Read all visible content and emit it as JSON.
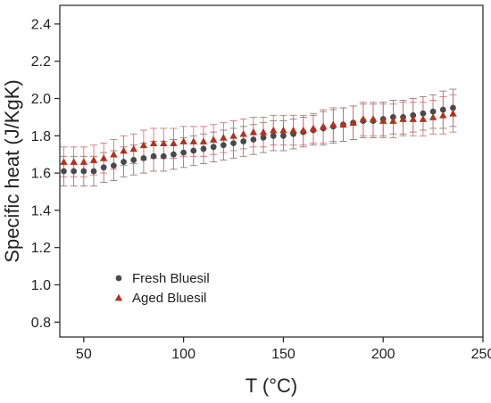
{
  "chart_data": {
    "type": "scatter",
    "title": "",
    "xlabel": "T (°C)",
    "ylabel": "Specific heat (J/KgK)",
    "xlim": [
      38,
      250
    ],
    "ylim": [
      0.72,
      2.5
    ],
    "xticks": [
      50,
      100,
      150,
      200,
      250
    ],
    "yticks": [
      0.8,
      1.0,
      1.2,
      1.4,
      1.6,
      1.8,
      2.0,
      2.2,
      2.4
    ],
    "tick_labels_x": [
      "50",
      "100",
      "150",
      "200",
      "250"
    ],
    "tick_labels_y": [
      "0.8",
      "1.0",
      "1.2",
      "1.4",
      "1.6",
      "1.8",
      "2.0",
      "2.2",
      "2.4"
    ],
    "grid": false,
    "legend_position": "lower-left",
    "series": [
      {
        "name": "Fresh Bluesil",
        "marker": "circle",
        "color": "#4a4a4a",
        "error_color": "#8a6a6a",
        "x": [
          40,
          45,
          50,
          55,
          60,
          65,
          70,
          75,
          80,
          85,
          90,
          95,
          100,
          105,
          110,
          115,
          120,
          125,
          130,
          135,
          140,
          145,
          150,
          155,
          160,
          165,
          170,
          175,
          180,
          185,
          190,
          195,
          200,
          205,
          210,
          215,
          220,
          225,
          230,
          235
        ],
        "y": [
          1.61,
          1.61,
          1.61,
          1.61,
          1.63,
          1.64,
          1.66,
          1.67,
          1.68,
          1.69,
          1.69,
          1.7,
          1.71,
          1.72,
          1.73,
          1.74,
          1.75,
          1.76,
          1.77,
          1.78,
          1.79,
          1.8,
          1.8,
          1.81,
          1.82,
          1.83,
          1.84,
          1.85,
          1.86,
          1.87,
          1.88,
          1.88,
          1.89,
          1.9,
          1.9,
          1.91,
          1.92,
          1.93,
          1.94,
          1.95
        ],
        "error": [
          0.08,
          0.08,
          0.08,
          0.08,
          0.08,
          0.08,
          0.08,
          0.08,
          0.08,
          0.08,
          0.08,
          0.08,
          0.08,
          0.08,
          0.08,
          0.08,
          0.08,
          0.08,
          0.08,
          0.08,
          0.08,
          0.08,
          0.08,
          0.08,
          0.08,
          0.08,
          0.09,
          0.09,
          0.09,
          0.09,
          0.09,
          0.09,
          0.09,
          0.09,
          0.09,
          0.09,
          0.09,
          0.09,
          0.1,
          0.1
        ]
      },
      {
        "name": "Aged Bluesil",
        "marker": "triangle",
        "color": "#b5301e",
        "error_color": "#cc6666",
        "x": [
          40,
          45,
          50,
          55,
          60,
          65,
          70,
          75,
          80,
          85,
          90,
          95,
          100,
          105,
          110,
          115,
          120,
          125,
          130,
          135,
          140,
          145,
          150,
          155,
          160,
          165,
          170,
          175,
          180,
          185,
          190,
          195,
          200,
          205,
          210,
          215,
          220,
          225,
          230,
          235
        ],
        "y": [
          1.66,
          1.66,
          1.66,
          1.67,
          1.68,
          1.7,
          1.72,
          1.73,
          1.75,
          1.76,
          1.76,
          1.76,
          1.77,
          1.77,
          1.77,
          1.78,
          1.79,
          1.8,
          1.81,
          1.82,
          1.82,
          1.83,
          1.83,
          1.83,
          1.83,
          1.84,
          1.85,
          1.86,
          1.86,
          1.87,
          1.89,
          1.89,
          1.88,
          1.88,
          1.89,
          1.89,
          1.89,
          1.9,
          1.91,
          1.92
        ],
        "error": [
          0.08,
          0.08,
          0.08,
          0.08,
          0.08,
          0.08,
          0.08,
          0.08,
          0.08,
          0.08,
          0.08,
          0.08,
          0.08,
          0.08,
          0.08,
          0.08,
          0.08,
          0.08,
          0.08,
          0.08,
          0.08,
          0.08,
          0.08,
          0.08,
          0.08,
          0.08,
          0.09,
          0.09,
          0.09,
          0.09,
          0.09,
          0.09,
          0.09,
          0.09,
          0.09,
          0.09,
          0.09,
          0.09,
          0.1,
          0.1
        ]
      }
    ]
  }
}
